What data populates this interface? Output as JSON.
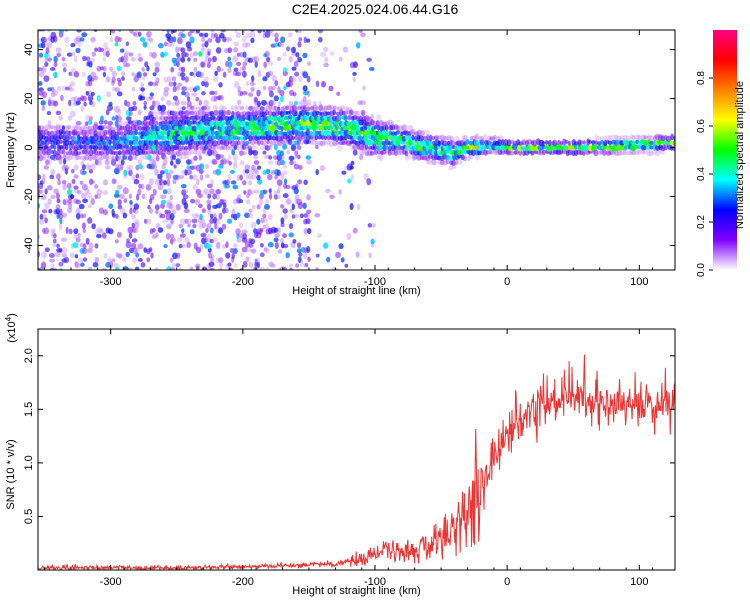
{
  "title": "C2E4.2025.024.06.44.G16",
  "chart_data": [
    {
      "type": "heatmap",
      "xlabel": "Height of straight line (km)",
      "ylabel": "Frequency (Hz)",
      "xlim": [
        -355,
        127
      ],
      "ylim": [
        -50,
        48
      ],
      "xticks": [
        -300,
        -200,
        -100,
        0,
        100
      ],
      "yticks": [
        -40,
        -20,
        0,
        20,
        40
      ],
      "colorbar": {
        "label": "Normalized spectral amplitude",
        "range": [
          0,
          1
        ],
        "ticks": [
          0.0,
          0.2,
          0.4,
          0.6,
          0.8
        ],
        "colormap": [
          "#ffffff",
          "#8000ff",
          "#0000ff",
          "#00ffff",
          "#00ff00",
          "#ffff00",
          "#ff8000",
          "#ff0000",
          "#ff0080"
        ]
      },
      "ridge": [
        {
          "x": -355,
          "f": 2,
          "amp": 0.25,
          "width": 8
        },
        {
          "x": -300,
          "f": 2,
          "amp": 0.3,
          "width": 8
        },
        {
          "x": -250,
          "f": 6,
          "amp": 0.45,
          "width": 10
        },
        {
          "x": -200,
          "f": 8,
          "amp": 0.5,
          "width": 8
        },
        {
          "x": -150,
          "f": 10,
          "amp": 0.55,
          "width": 8
        },
        {
          "x": -120,
          "f": 8,
          "amp": 0.5,
          "width": 8
        },
        {
          "x": -100,
          "f": 4,
          "amp": 0.55,
          "width": 8
        },
        {
          "x": -80,
          "f": 3,
          "amp": 0.5,
          "width": 6
        },
        {
          "x": -60,
          "f": 0,
          "amp": 0.5,
          "width": 6
        },
        {
          "x": -40,
          "f": -2,
          "amp": 0.45,
          "width": 6
        },
        {
          "x": -30,
          "f": 0,
          "amp": 0.6,
          "width": 4
        },
        {
          "x": -10,
          "f": 1,
          "amp": 0.7,
          "width": 4
        },
        {
          "x": 0,
          "f": 0,
          "amp": 0.85,
          "width": 3
        },
        {
          "x": 50,
          "f": 0,
          "amp": 0.9,
          "width": 3
        },
        {
          "x": 100,
          "f": 1,
          "amp": 0.9,
          "width": 3
        },
        {
          "x": 127,
          "f": 2,
          "amp": 0.95,
          "width": 3
        }
      ]
    },
    {
      "type": "line",
      "xlabel": "Height of straight line (km)",
      "ylabel": "SNR (10 * v/v)",
      "y_multiplier": "(x10",
      "y_multiplier_exp": "4",
      "y_multiplier_close": ")",
      "xlim": [
        -355,
        127
      ],
      "ylim": [
        0,
        2.25
      ],
      "xticks": [
        -300,
        -200,
        -100,
        0,
        100
      ],
      "yticks": [
        0.5,
        1.0,
        1.5,
        2.0
      ],
      "ytick_labels": [
        "0.5",
        "1.0",
        "1.5",
        "2.0"
      ],
      "color": "#ee3333",
      "series": [
        {
          "x": [
            -355,
            -300,
            -250,
            -200,
            -170,
            -150,
            -130,
            -110,
            -100,
            -90,
            -80,
            -70,
            -60,
            -50,
            -40,
            -30,
            -25,
            -20,
            -15,
            -10,
            -5,
            0,
            10,
            20,
            30,
            40,
            50,
            60,
            70,
            80,
            90,
            100,
            110,
            127
          ],
          "values": [
            0.02,
            0.02,
            0.02,
            0.03,
            0.04,
            0.05,
            0.06,
            0.1,
            0.15,
            0.17,
            0.17,
            0.16,
            0.22,
            0.28,
            0.38,
            0.55,
            0.7,
            0.8,
            0.9,
            1.0,
            1.1,
            1.25,
            1.4,
            1.5,
            1.55,
            1.6,
            1.62,
            1.6,
            1.6,
            1.58,
            1.55,
            1.55,
            1.55,
            1.55
          ]
        }
      ]
    }
  ]
}
